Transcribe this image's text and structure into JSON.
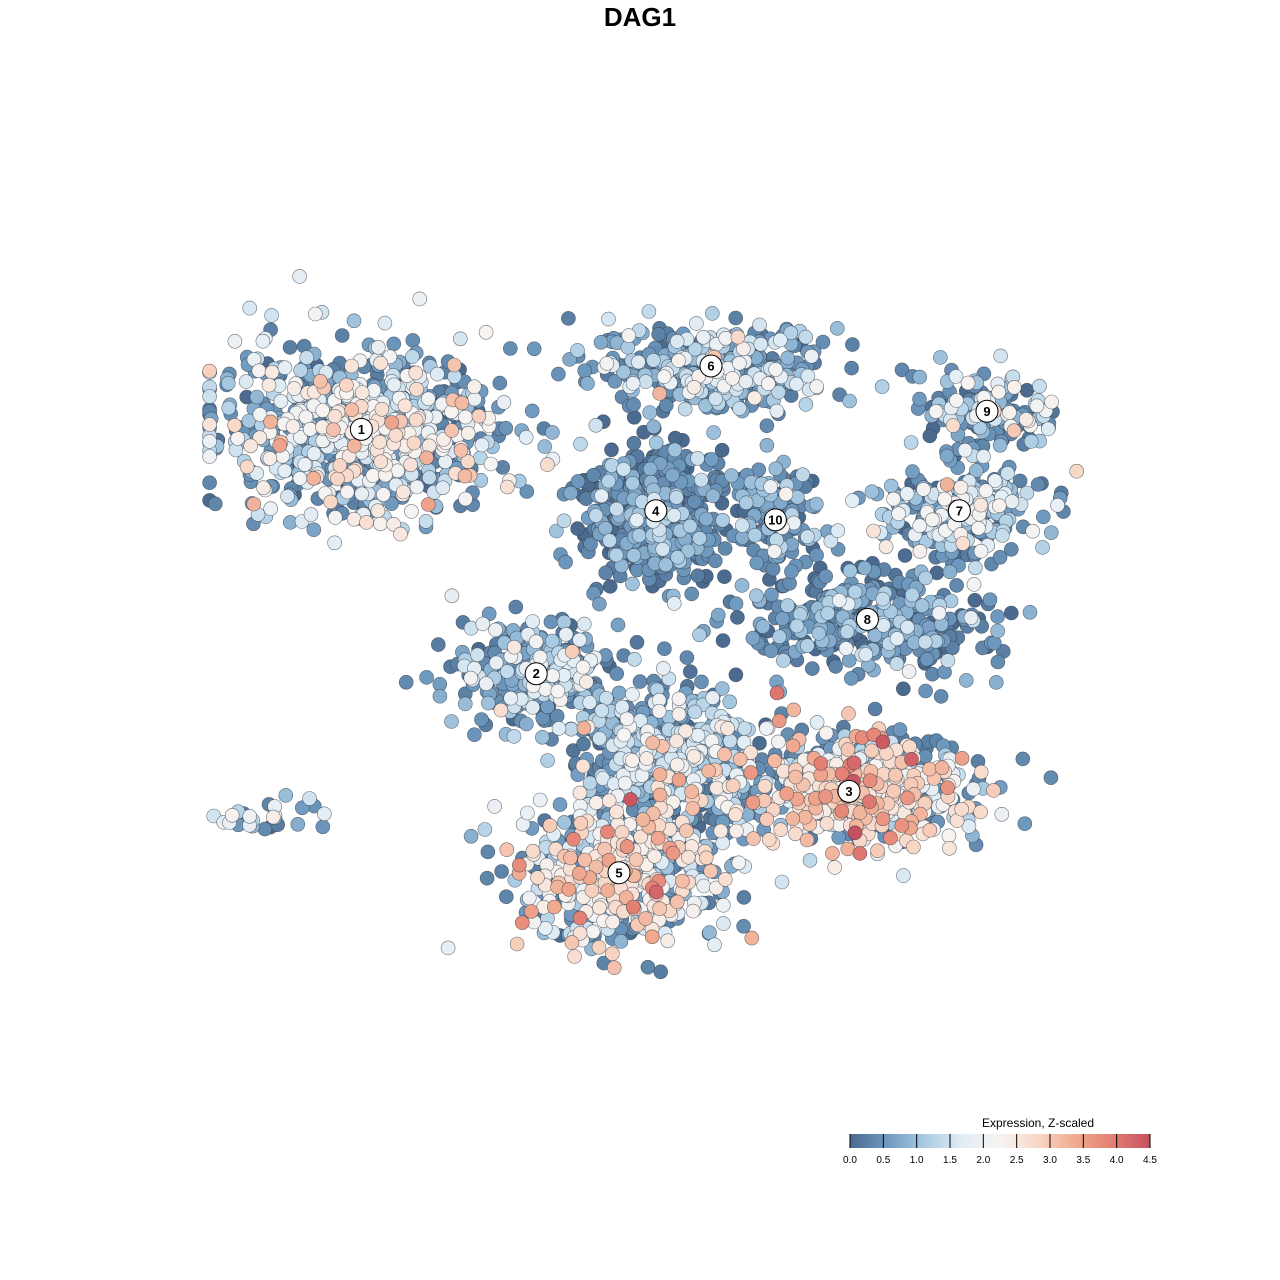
{
  "chart_data": {
    "type": "scatter",
    "title": "DAG1",
    "xlabel": "",
    "ylabel": "",
    "grid": false,
    "legend": {
      "title": "Expression, Z-scaled",
      "placement": "bottom-right",
      "ticks": [
        "0.0",
        "0.5",
        "1.0",
        "1.5",
        "2.0",
        "2.5",
        "3.0",
        "3.5",
        "4.0",
        "4.5"
      ],
      "range": [
        0,
        4.5
      ],
      "colors": [
        "#4a6b8f",
        "#6f9ac0",
        "#a9cbe3",
        "#e2edf5",
        "#f7f4f2",
        "#f8d7c6",
        "#f0aa90",
        "#e37f73",
        "#c6505f"
      ]
    },
    "clusters": [
      {
        "label": "1",
        "x": 0.17,
        "y": 0.73,
        "sx": 0.1,
        "sy": 0.06,
        "n": 900,
        "mean_expr": 1.6,
        "sd_expr": 0.8
      },
      {
        "label": "2",
        "x": 0.36,
        "y": 0.46,
        "sx": 0.06,
        "sy": 0.04,
        "n": 300,
        "mean_expr": 1.0,
        "sd_expr": 0.7
      },
      {
        "label": "3",
        "x": 0.7,
        "y": 0.33,
        "sx": 0.09,
        "sy": 0.04,
        "n": 650,
        "mean_expr": 2.3,
        "sd_expr": 0.8
      },
      {
        "label": "4",
        "x": 0.49,
        "y": 0.64,
        "sx": 0.05,
        "sy": 0.05,
        "n": 500,
        "mean_expr": 0.4,
        "sd_expr": 0.5
      },
      {
        "label": "5",
        "x": 0.45,
        "y": 0.24,
        "sx": 0.07,
        "sy": 0.05,
        "n": 650,
        "mean_expr": 2.0,
        "sd_expr": 0.8
      },
      {
        "label": "6",
        "x": 0.55,
        "y": 0.8,
        "sx": 0.08,
        "sy": 0.03,
        "n": 420,
        "mean_expr": 1.1,
        "sd_expr": 0.7
      },
      {
        "label": "7",
        "x": 0.82,
        "y": 0.64,
        "sx": 0.06,
        "sy": 0.03,
        "n": 260,
        "mean_expr": 1.3,
        "sd_expr": 0.8
      },
      {
        "label": "8",
        "x": 0.72,
        "y": 0.52,
        "sx": 0.09,
        "sy": 0.04,
        "n": 380,
        "mean_expr": 0.6,
        "sd_expr": 0.6
      },
      {
        "label": "9",
        "x": 0.85,
        "y": 0.75,
        "sx": 0.05,
        "sy": 0.03,
        "n": 160,
        "mean_expr": 1.2,
        "sd_expr": 0.8
      },
      {
        "label": "10",
        "x": 0.62,
        "y": 0.63,
        "sx": 0.03,
        "sy": 0.04,
        "n": 120,
        "mean_expr": 0.8,
        "sd_expr": 0.6
      },
      {
        "label": "",
        "x": 0.5,
        "y": 0.37,
        "sx": 0.06,
        "sy": 0.05,
        "n": 520,
        "mean_expr": 1.0,
        "sd_expr": 0.7
      },
      {
        "label": "",
        "x": 0.07,
        "y": 0.3,
        "sx": 0.04,
        "sy": 0.015,
        "n": 28,
        "mean_expr": 1.5,
        "sd_expr": 0.9
      }
    ],
    "xlim": [
      0,
      1
    ],
    "ylim": [
      0,
      1
    ]
  }
}
